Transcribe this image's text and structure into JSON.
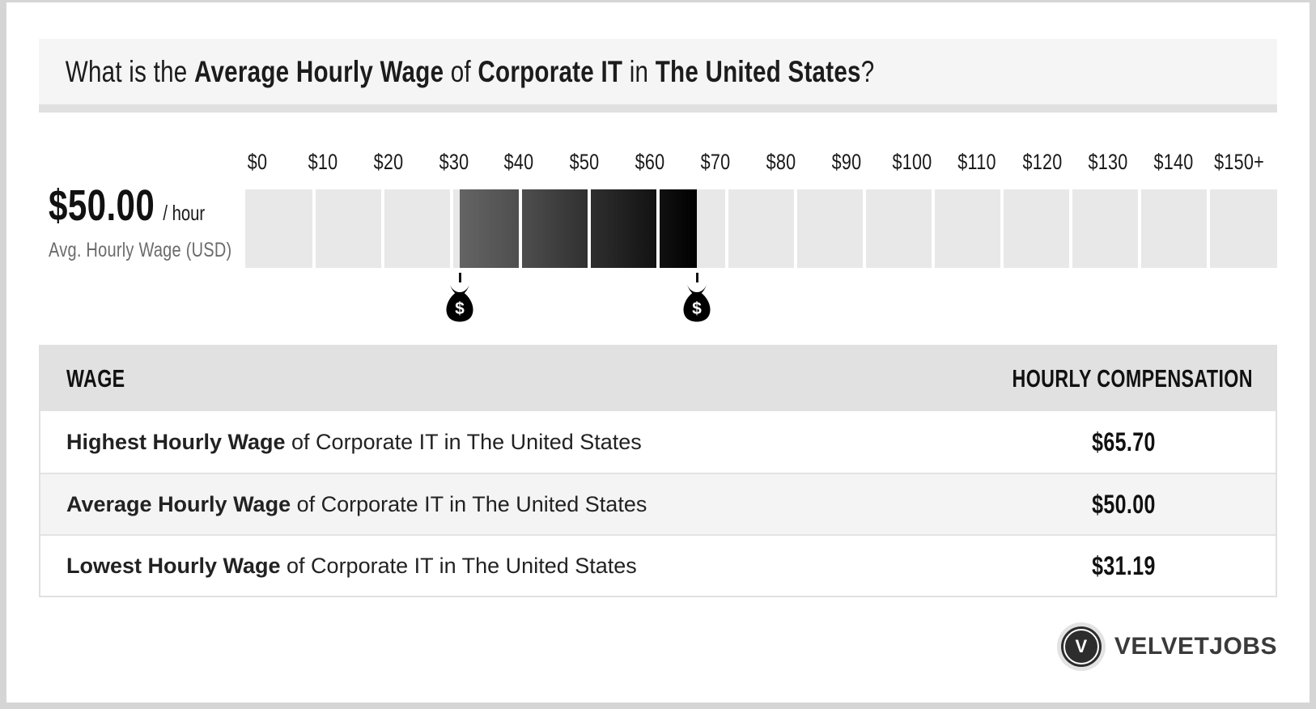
{
  "page": {
    "frame_color": "#d5d5d5",
    "card_color": "#ffffff"
  },
  "header": {
    "question_parts": [
      {
        "text": "What is the ",
        "bold": false
      },
      {
        "text": "Average Hourly Wage",
        "bold": true
      },
      {
        "text": " of ",
        "bold": false
      },
      {
        "text": "Corporate IT",
        "bold": true
      },
      {
        "text": " in ",
        "bold": false
      },
      {
        "text": "The United States",
        "bold": true
      },
      {
        "text": "?",
        "bold": false
      }
    ]
  },
  "chart_data": {
    "type": "bar",
    "subtype": "horizontal-wage-range-scale",
    "title": "Average Hourly Wage of Corporate IT in The United States",
    "unit": "USD per hour",
    "axis_min": 0,
    "axis_max": 150,
    "axis_tick_labels": [
      "$0",
      "$10",
      "$20",
      "$30",
      "$40",
      "$50",
      "$60",
      "$70",
      "$80",
      "$90",
      "$100",
      "$110",
      "$120",
      "$130",
      "$140",
      "$150+"
    ],
    "segment_count": 15,
    "values": {
      "lowest": 31.19,
      "average": 50.0,
      "highest": 65.7
    },
    "markers": [
      {
        "name": "lowest-wage-marker",
        "value": 31.19,
        "icon": "money-bag-icon"
      },
      {
        "name": "highest-wage-marker",
        "value": 65.7,
        "icon": "money-bag-icon"
      }
    ],
    "summary": {
      "average_display": "$50.00",
      "unit_label": "/ hour",
      "caption": "Avg. Hourly Wage (USD)"
    },
    "colors": {
      "track": "#e8e8e8",
      "fill_start": "#646464",
      "fill_end": "#000000",
      "marker": "#000000"
    },
    "legend": "none",
    "grid": "off"
  },
  "table": {
    "columns": [
      "WAGE",
      "HOURLY COMPENSATION"
    ],
    "rows": [
      {
        "label_bold": "Highest Hourly Wage",
        "label_rest": " of Corporate IT in The United States",
        "value": "$65.70"
      },
      {
        "label_bold": "Average Hourly Wage",
        "label_rest": " of Corporate IT in The United States",
        "value": "$50.00"
      },
      {
        "label_bold": "Lowest Hourly Wage",
        "label_rest": " of Corporate IT in The United States",
        "value": "$31.19"
      }
    ]
  },
  "logo": {
    "monogram": "V",
    "brand": "VELVETJOBS"
  }
}
